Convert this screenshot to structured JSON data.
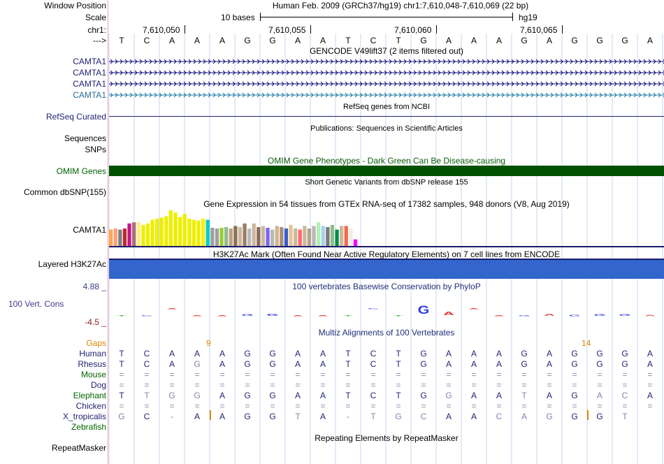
{
  "header": {
    "window_position_label": "Window Position",
    "scale_label": "Scale",
    "chrom_label": "chr1:",
    "strand_label": "--->",
    "assembly_text": "Human Feb. 2009 (GRCh37/hg19)   chr1:7,610,048-7,610,069 (22 bp)",
    "scale_text": "10 bases",
    "scale_db": "hg19",
    "positions": [
      "7,610,050",
      "7,610,055",
      "7,610,060",
      "7,610,065"
    ]
  },
  "reference_sequence": [
    "T",
    "C",
    "A",
    "A",
    "A",
    "G",
    "G",
    "A",
    "A",
    "T",
    "C",
    "T",
    "G",
    "A",
    "A",
    "A",
    "G",
    "A",
    "G",
    "G",
    "G",
    "A"
  ],
  "tracks": {
    "gencode": {
      "title": "GENCODE V49lift37 (2 items filtered out)",
      "genes": [
        "CAMTA1",
        "CAMTA1",
        "CAMTA1",
        "CAMTA1"
      ]
    },
    "refseq": {
      "label": "RefSeq Curated",
      "title": "RefSeq genes from NCBI"
    },
    "publications": {
      "label": "Sequences",
      "title": "Publications: Sequences in Scientific Articles"
    },
    "snps": {
      "label": "SNPs"
    },
    "omim": {
      "label": "OMIM Genes",
      "title": "OMIM Gene Phenotypes - Dark Green Can Be Disease-causing",
      "color": "#005000"
    },
    "dbsnp": {
      "label": "Common dbSNP(155)",
      "title": "Short Genetic Variants from dbSNP release 155"
    },
    "gtex": {
      "label": "CAMTA1",
      "title": "Gene Expression in 54 tissues from GTEx RNA-seq of 17382 samples, 948 donors (V8, Aug 2019)",
      "bars": [
        0.45,
        0.48,
        0.45,
        0.48,
        0.62,
        0.65,
        0.66,
        0.58,
        0.62,
        0.72,
        0.75,
        0.78,
        0.82,
        0.98,
        0.92,
        0.8,
        0.88,
        0.75,
        0.72,
        0.7,
        0.75,
        0.72,
        0.5,
        0.48,
        0.5,
        0.52,
        0.48,
        0.55,
        0.52,
        0.62,
        0.48,
        0.62,
        0.52,
        0.55,
        0.5,
        0.45,
        0.55,
        0.52,
        0.48,
        0.58,
        0.48,
        0.45,
        0.55,
        0.48,
        0.55,
        0.65,
        0.55,
        0.52,
        0.58,
        0.45,
        0.55,
        0.55,
        0.48,
        0.18
      ],
      "colors": [
        "#FFA54F",
        "#FF9F7A",
        "#7F7F7F",
        "#BB2C2C",
        "#C71585",
        "#AA6E7A",
        "#FFEC8B",
        "#EEEE00",
        "#EEEE00",
        "#EEEE00",
        "#EEEE00",
        "#EEEE00",
        "#EEEE00",
        "#EEEE00",
        "#EEEE00",
        "#EEEE00",
        "#EEEE00",
        "#EEEE00",
        "#EEEE00",
        "#EEEE00",
        "#FFEE00",
        "#00CDCD",
        "#A0A0A0",
        "#A0A0A0",
        "#9ACD32",
        "#8FBC8F",
        "#C0A080",
        "#8B7355",
        "#CDB79E",
        "#9A7E67",
        "#BBBBBB",
        "#CDB79E",
        "#8B6B5A",
        "#CDB79E",
        "#7A67EE",
        "#B8B8B8",
        "#D2B48C",
        "#A88F74",
        "#3A5FCD",
        "#E5C494",
        "#CDB79E",
        "#FF6A6A",
        "#CDB79E",
        "#B0A48C",
        "#B8B8B8",
        "#B4EEB4",
        "#A4D3EE",
        "#7A7A7A",
        "#8FBC8F",
        "#008B45",
        "#CDB79E",
        "#EE6A50",
        "#EEEEE0",
        "#FF00FF"
      ]
    },
    "h3k27ac": {
      "label": "Layered H3K27Ac",
      "title": "H3K27Ac Mark (Often Found Near Active Regulatory Elements) on 7 cell lines from ENCODE",
      "color": "#3366cc"
    },
    "conservation": {
      "label": "100 Vert. Cons",
      "max": "4.88 _",
      "min": "-4.5 _",
      "title": "100 vertebrates Basewise Conservation by PhyloP",
      "scores": [
        0.05,
        0.0,
        -0.02,
        0.08,
        0.1,
        0.18,
        0.2,
        0.05,
        0.04,
        0.06,
        -0.05,
        0.0,
        0.75,
        0.35,
        -0.05,
        0.08,
        0.08,
        0.2,
        0.12,
        0.18,
        0.16,
        0.12
      ]
    },
    "multiz": {
      "title": "Multiz Alignments of 100 Vertebrates",
      "gaps_label": "Gaps",
      "gap_counts": [
        "9",
        "14"
      ],
      "species": [
        {
          "name": "Human",
          "bases": [
            "T",
            "C",
            "A",
            "A",
            "A",
            "G",
            "G",
            "A",
            "A",
            "T",
            "C",
            "T",
            "G",
            "A",
            "A",
            "A",
            "G",
            "A",
            "G",
            "G",
            "G",
            "A"
          ]
        },
        {
          "name": "Rhesus",
          "bases": [
            "T",
            "C",
            "A",
            "G",
            "A",
            "G",
            "G",
            "A",
            "A",
            "T",
            "C",
            "T",
            "G",
            "A",
            "A",
            "A",
            "G",
            "A",
            "G",
            "G",
            "G",
            "A"
          ]
        },
        {
          "name": "Mouse",
          "bases": [
            "=",
            "=",
            "=",
            "=",
            "=",
            "=",
            "=",
            "=",
            "=",
            "=",
            "=",
            "=",
            "=",
            "=",
            "=",
            "=",
            "=",
            "=",
            "=",
            "=",
            "=",
            "="
          ]
        },
        {
          "name": "Dog",
          "bases": [
            "=",
            "=",
            "=",
            "=",
            "=",
            "=",
            "=",
            "=",
            "=",
            "=",
            "=",
            "=",
            "=",
            "=",
            "=",
            "=",
            "=",
            "=",
            "=",
            "=",
            "=",
            "="
          ]
        },
        {
          "name": "Elephant",
          "bases": [
            "T",
            "T",
            "G",
            "G",
            "A",
            "G",
            "G",
            "A",
            "A",
            "T",
            "C",
            "T",
            "G",
            "G",
            "A",
            "A",
            "T",
            "A",
            "G",
            "A",
            "C",
            "A"
          ]
        },
        {
          "name": "Chicken",
          "bases": [
            "=",
            "=",
            "=",
            "=",
            "=",
            "=",
            "=",
            "=",
            "=",
            "=",
            "=",
            "=",
            "=",
            "=",
            "=",
            "=",
            "=",
            "=",
            "=",
            "=",
            "=",
            "="
          ]
        },
        {
          "name": "X_tropicalis",
          "bases": [
            "G",
            "C",
            "-",
            "A",
            "A",
            "G",
            "G",
            "T",
            "A",
            "-",
            "T",
            "G",
            "C",
            "A",
            "A",
            "C",
            "A",
            "G",
            "G",
            "G",
            "T",
            ""
          ]
        },
        {
          "name": "Zebrafish",
          "bases": []
        }
      ]
    },
    "repeatmasker": {
      "label": "RepeatMasker",
      "title": "Repeating Elements by RepeatMasker"
    }
  },
  "colors": {
    "label_navy": "#1f1f73",
    "gene_navy": "#0c0c78",
    "gene_teal": "#1a7aa0",
    "grid_line": "#c8d4f0",
    "left_border": "#f0a0b8",
    "gap_orange": "#d98a00"
  }
}
